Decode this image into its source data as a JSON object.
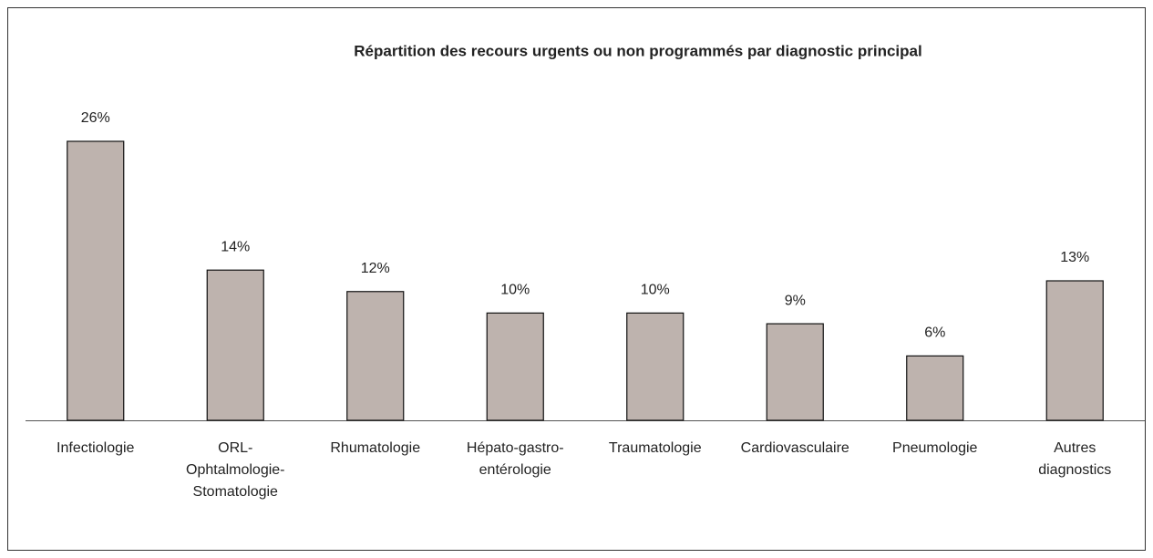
{
  "chart_data": {
    "type": "bar",
    "title": "Répartition des recours urgents ou non programmés par diagnostic principal",
    "categories": [
      "Infectiologie",
      "ORL-\nOphtalmologie-\nStomatologie",
      "Rhumatologie",
      "Hépato-gastro-\nentérologie",
      "Traumatologie",
      "Cardiovasculaire",
      "Pneumologie",
      "Autres\ndiagnostics"
    ],
    "values": [
      26,
      14,
      12,
      10,
      10,
      9,
      6,
      13
    ],
    "value_labels": [
      "26%",
      "14%",
      "12%",
      "10%",
      "10%",
      "9%",
      "6%",
      "13%"
    ],
    "color": "#beb3ae"
  }
}
